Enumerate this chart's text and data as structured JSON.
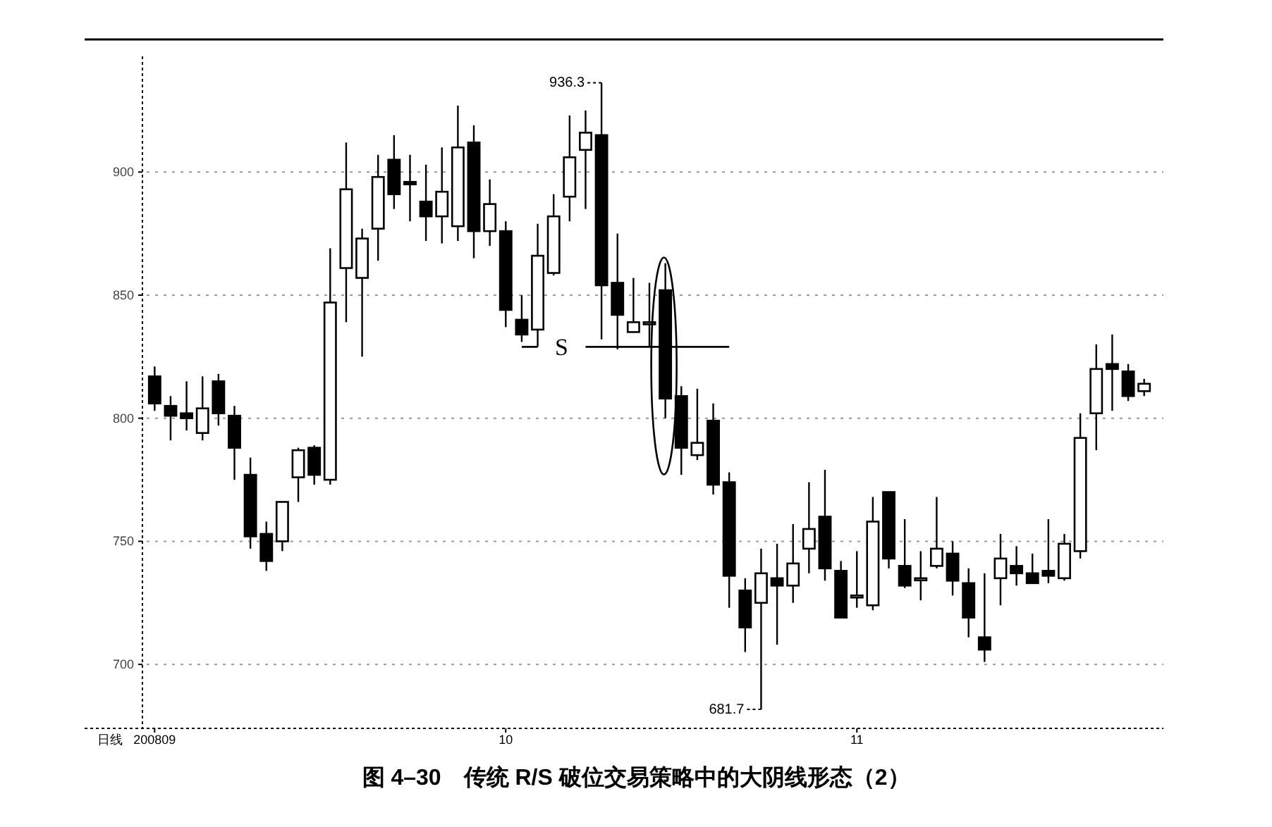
{
  "chart_data": {
    "type": "candlestick",
    "title": "图 4–30　传统 R/S 破位交易策略中的大阴线形态（2）",
    "xlabel": "日线",
    "categories": [
      "200809",
      null,
      null,
      null,
      null,
      null,
      null,
      null,
      null,
      null,
      null,
      null,
      null,
      null,
      null,
      null,
      null,
      null,
      null,
      null,
      null,
      null,
      "10",
      null,
      null,
      null,
      null,
      null,
      null,
      null,
      null,
      null,
      null,
      null,
      null,
      null,
      null,
      null,
      null,
      null,
      null,
      null,
      null,
      null,
      "11",
      null,
      null,
      null,
      null,
      null,
      null,
      null,
      null,
      null,
      null,
      null,
      null,
      null,
      null,
      null,
      null,
      null,
      null
    ],
    "ohlc": [
      [
        817,
        821,
        803,
        806
      ],
      [
        805,
        809,
        791,
        801
      ],
      [
        802,
        815,
        795,
        800
      ],
      [
        794,
        817,
        791,
        804
      ],
      [
        815,
        818,
        797,
        802
      ],
      [
        801,
        805,
        775,
        788
      ],
      [
        777,
        784,
        747,
        752
      ],
      [
        753,
        758,
        738,
        742
      ],
      [
        750,
        766,
        746,
        766
      ],
      [
        776,
        788,
        766,
        787
      ],
      [
        788,
        789,
        773,
        777
      ],
      [
        775,
        869,
        773,
        847
      ],
      [
        861,
        912,
        839,
        893
      ],
      [
        857,
        877,
        825,
        873
      ],
      [
        877,
        907,
        864,
        898
      ],
      [
        905,
        915,
        885,
        891
      ],
      [
        896,
        907,
        880,
        895
      ],
      [
        888,
        903,
        872,
        882
      ],
      [
        882,
        910,
        871,
        892
      ],
      [
        878,
        927,
        872,
        910
      ],
      [
        912,
        919,
        865,
        876
      ],
      [
        876,
        897,
        870,
        887
      ],
      [
        876,
        880,
        837,
        844
      ],
      [
        840,
        850,
        831,
        834
      ],
      [
        836,
        879,
        829,
        866
      ],
      [
        859,
        891,
        858,
        882
      ],
      [
        890,
        923,
        880,
        906
      ],
      [
        909,
        925,
        885,
        916
      ],
      [
        915,
        936.3,
        832,
        854
      ],
      [
        855,
        875,
        828,
        842
      ],
      [
        835,
        857,
        835,
        839
      ],
      [
        839,
        855,
        829,
        839
      ],
      [
        852,
        863,
        800,
        808
      ],
      [
        809,
        813,
        777,
        788
      ],
      [
        785,
        812,
        783,
        790
      ],
      [
        799,
        806,
        769,
        773
      ],
      [
        774,
        778,
        723,
        736
      ],
      [
        730,
        735,
        705,
        715
      ],
      [
        725,
        747,
        681.7,
        737
      ],
      [
        735,
        749,
        708,
        732
      ],
      [
        732,
        757,
        725,
        741
      ],
      [
        747,
        774,
        737,
        755
      ],
      [
        760,
        779,
        734,
        739
      ],
      [
        738,
        742,
        719,
        719
      ],
      [
        728,
        746,
        723,
        728
      ],
      [
        724,
        768,
        722,
        758
      ],
      [
        770,
        770,
        739,
        743
      ],
      [
        740,
        759,
        731,
        732
      ],
      [
        735,
        746,
        726,
        735
      ],
      [
        740,
        768,
        739,
        747
      ],
      [
        745,
        750,
        728,
        734
      ],
      [
        733,
        739,
        711,
        719
      ],
      [
        711,
        737,
        701,
        706
      ],
      [
        735,
        753,
        724,
        743
      ],
      [
        740,
        748,
        732,
        737
      ],
      [
        737,
        745,
        733,
        733
      ],
      [
        738,
        759,
        733,
        736
      ],
      [
        735,
        753,
        734,
        749
      ],
      [
        746,
        802,
        743,
        792
      ],
      [
        802,
        830,
        787,
        820
      ],
      [
        822,
        834,
        803,
        820
      ],
      [
        819,
        822,
        807,
        809
      ],
      [
        811,
        816,
        809,
        814
      ]
    ],
    "series": [
      {
        "type": "line",
        "color": "#000000",
        "values": [
          null,
          null,
          null,
          null,
          null,
          null,
          null,
          null,
          null,
          null,
          null,
          null,
          null,
          null,
          null,
          null,
          null,
          null,
          null,
          null,
          null,
          null,
          null,
          829,
          829,
          null,
          null,
          829,
          829,
          829,
          829,
          829,
          829,
          829,
          829,
          829,
          829,
          null,
          null,
          null,
          null,
          null,
          null,
          null,
          null,
          null,
          null,
          null,
          null,
          null,
          null,
          null,
          null,
          null,
          null,
          null,
          null,
          null,
          null,
          null,
          null,
          null,
          null
        ]
      }
    ],
    "annotations": [
      "936.3",
      "681.7",
      {
        "text": "S",
        "y": 829
      }
    ],
    "ylim": [
      674,
      947
    ],
    "yticks": [
      700,
      750,
      800,
      850,
      900
    ],
    "grid": "y"
  }
}
